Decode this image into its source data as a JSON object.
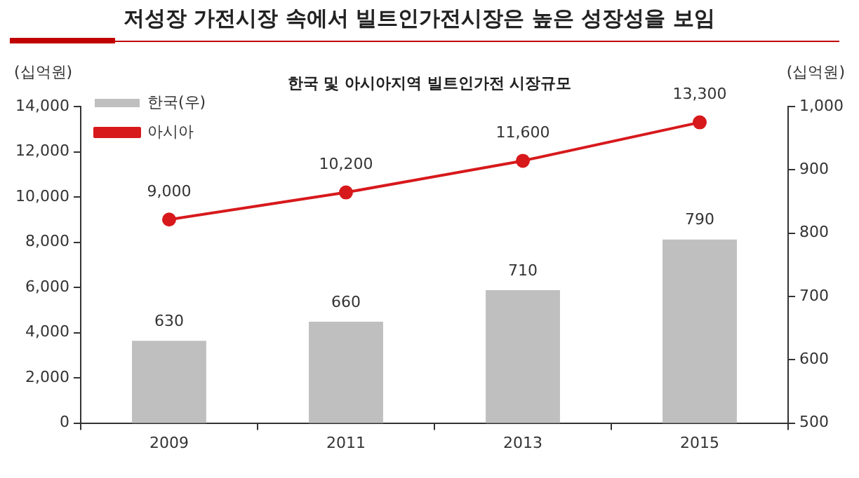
{
  "chart_data": {
    "type": "bar",
    "title": "저성장 가전시장 속에서 빌트인가전시장은 높은 성장성을 보임",
    "subtitle": "한국 및 아시아지역 빌트인가전 시장규모",
    "ylabel": "(십억원)",
    "y2label": "(십억원)",
    "categories": [
      "2009",
      "2011",
      "2013",
      "2015"
    ],
    "series": [
      {
        "name": "한국(우)",
        "axis": "y2",
        "color": "#bfbfbf",
        "values": [
          630,
          660,
          710,
          790
        ],
        "value_labels": [
          "630",
          "660",
          "710",
          "790"
        ]
      },
      {
        "name": "아시아",
        "type": "line",
        "axis": "y",
        "color": "#d7191c",
        "values": [
          9000,
          10200,
          11600,
          13300
        ],
        "value_labels": [
          "9,000",
          "10,200",
          "11,600",
          "13,300"
        ]
      }
    ],
    "ylim": [
      0,
      14000
    ],
    "yticks": [
      0,
      {
        "value": 2000,
        "label": "2,000"
      },
      {
        "value": 4000,
        "label": "4,000"
      },
      {
        "value": 6000,
        "label": "6,000"
      },
      {
        "value": 8000,
        "label": "8,000"
      },
      {
        "value": 10000,
        "label": "10,000"
      },
      {
        "value": 12000,
        "label": "12,000"
      },
      {
        "value": 14000,
        "label": "14,000"
      }
    ],
    "y2lim": [
      500,
      1000
    ],
    "y2ticks": [
      500,
      600,
      700,
      800,
      900,
      {
        "value": 1000,
        "label": "1,000"
      }
    ],
    "grid": false,
    "legend": "top left",
    "marker": "circle",
    "line_style": "solid"
  }
}
